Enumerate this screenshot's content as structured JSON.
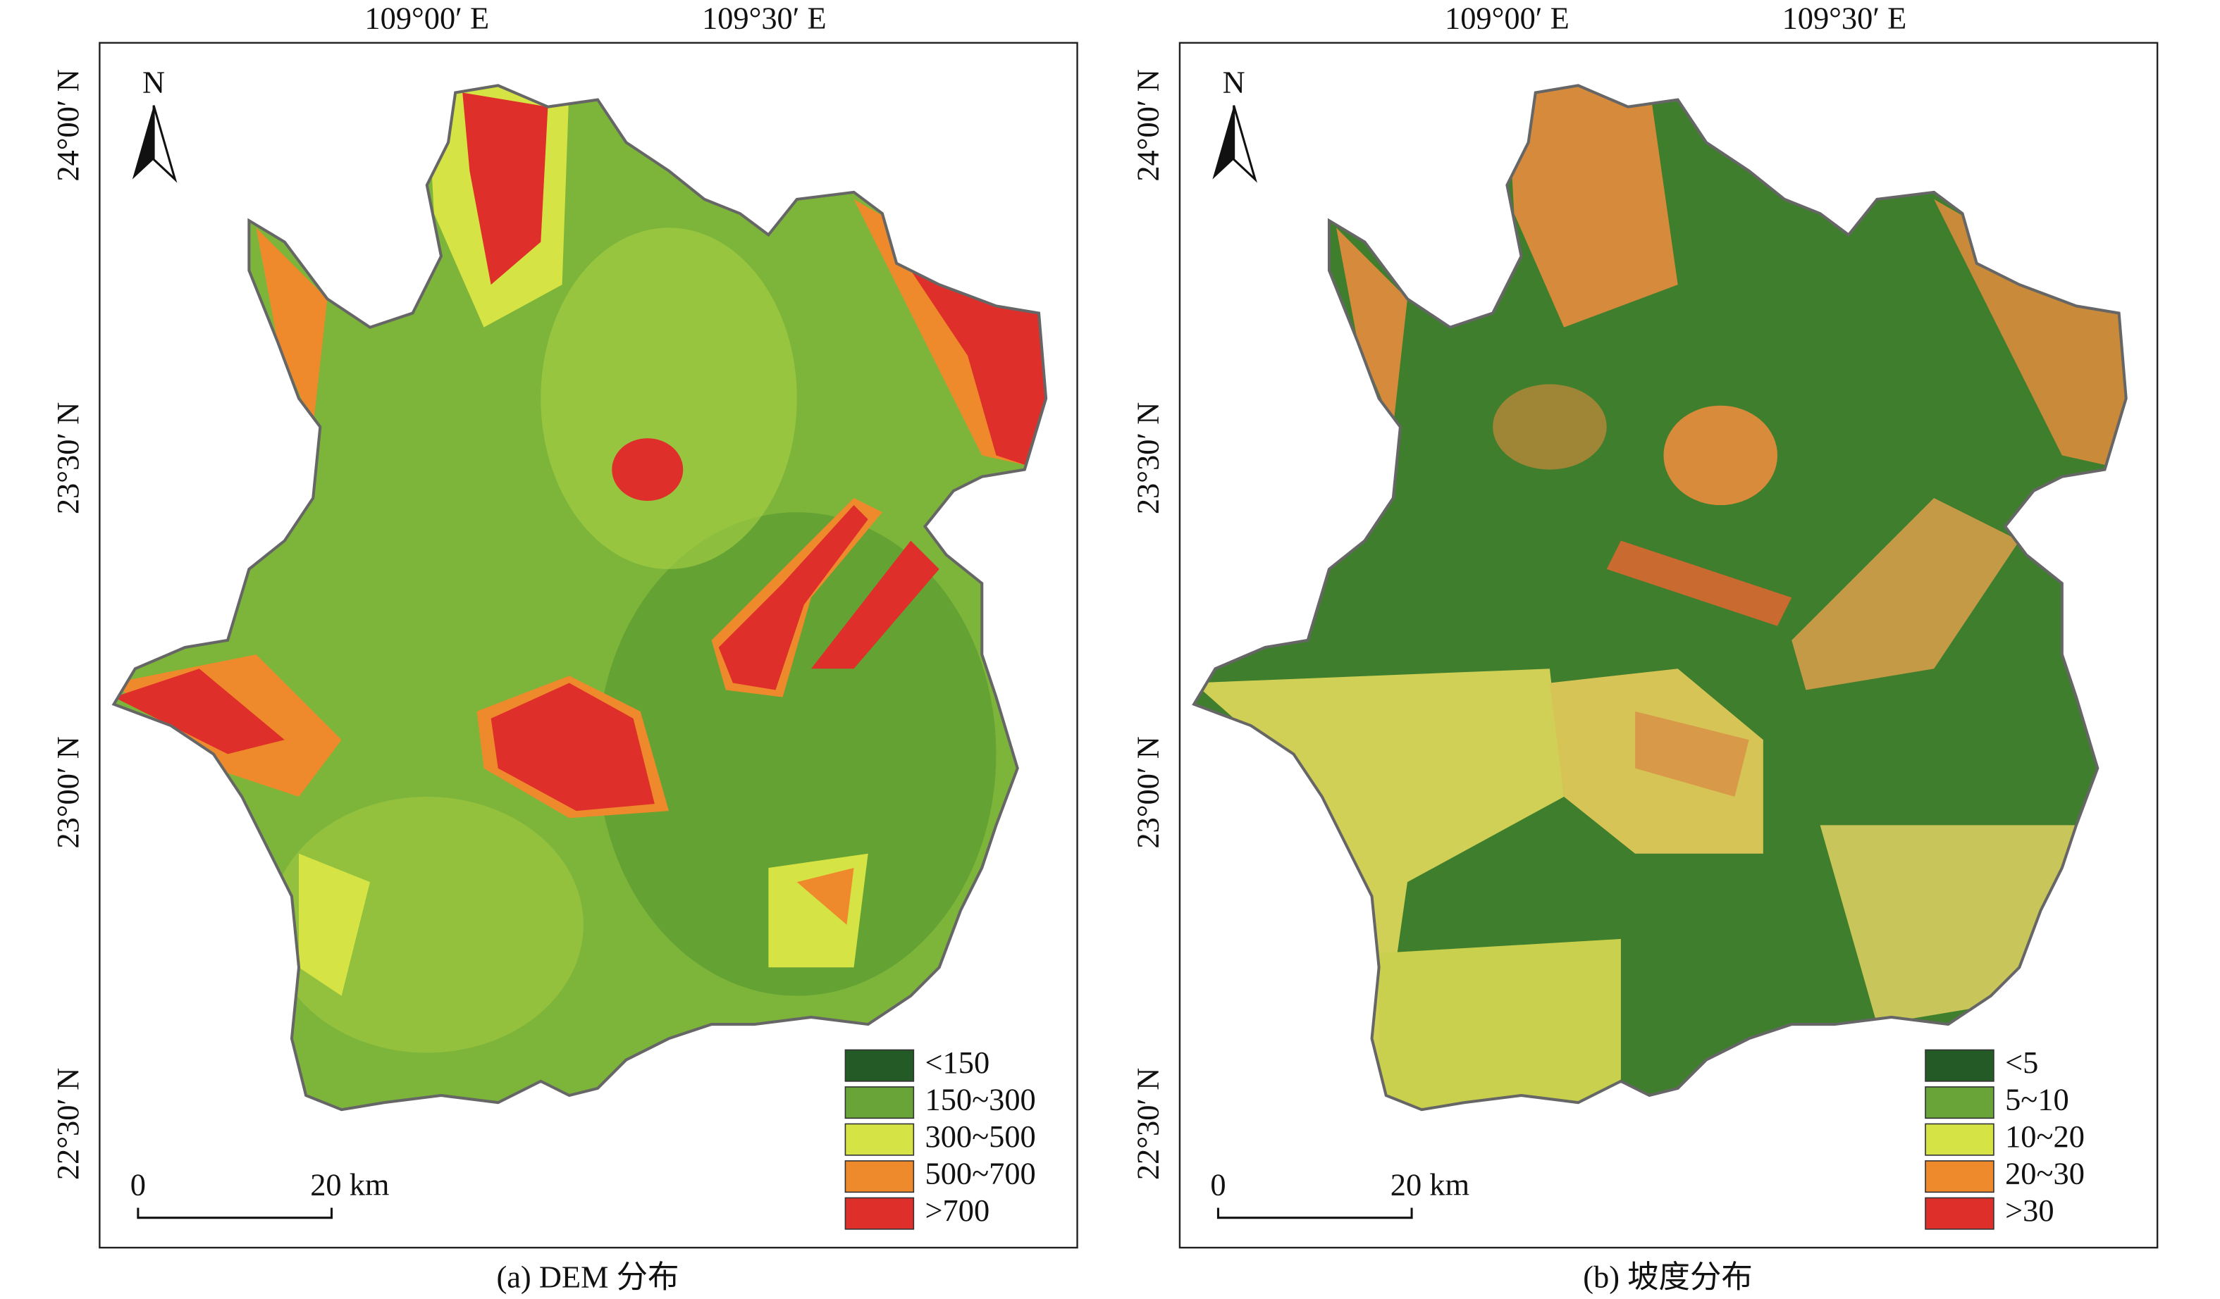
{
  "panels": [
    {
      "caption": "(a) DEM 分布",
      "lon_labels": [
        "109°00′ E",
        "109°30′ E"
      ],
      "lat_labels": [
        "24°00′ N",
        "23°30′ N",
        "23°00′ N",
        "22°30′ N"
      ],
      "north": "N",
      "scale_bar": [
        "0",
        "20 km"
      ],
      "legend": [
        {
          "label": "<150",
          "color": "#235a25"
        },
        {
          "label": "150~300",
          "color": "#68a437"
        },
        {
          "label": "300~500",
          "color": "#d6e344"
        },
        {
          "label": "500~700",
          "color": "#ee8a2c"
        },
        {
          "label": ">700",
          "color": "#df2f2a"
        }
      ]
    },
    {
      "caption": "(b) 坡度分布",
      "lon_labels": [
        "109°00′ E",
        "109°30′ E"
      ],
      "lat_labels": [
        "24°00′ N",
        "23°30′ N",
        "23°00′ N",
        "22°30′ N"
      ],
      "north": "N",
      "scale_bar": [
        "0",
        "20 km"
      ],
      "legend": [
        {
          "label": "<5",
          "color": "#235a25"
        },
        {
          "label": "5~10",
          "color": "#68a437"
        },
        {
          "label": "10~20",
          "color": "#d6e344"
        },
        {
          "label": "20~30",
          "color": "#ee8a2c"
        },
        {
          "label": ">30",
          "color": "#df2f2a"
        }
      ]
    }
  ]
}
